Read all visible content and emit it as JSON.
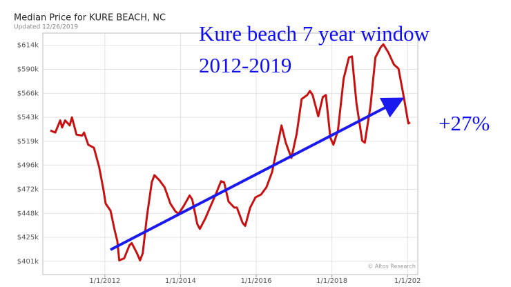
{
  "chart_data": {
    "type": "line",
    "title": "Median Price for KURE BEACH, NC",
    "subtitle": "Updated 12/26/2019",
    "credit": "© Altos Research",
    "annotations": [
      "Kure beach 7 year window",
      "2012-2019",
      "+27%"
    ],
    "x": [
      2010.56,
      2010.69,
      2010.82,
      2010.87,
      2010.95,
      2011.07,
      2011.13,
      2011.25,
      2011.4,
      2011.45,
      2011.56,
      2011.71,
      2011.85,
      2011.96,
      2012.02,
      2012.15,
      2012.25,
      2012.33,
      2012.38,
      2012.51,
      2012.65,
      2012.71,
      2012.85,
      2012.93,
      2013.0,
      2013.11,
      2013.24,
      2013.31,
      2013.44,
      2013.58,
      2013.73,
      2013.87,
      2013.95,
      2014.09,
      2014.24,
      2014.31,
      2014.44,
      2014.51,
      2014.65,
      2014.8,
      2014.93,
      2015.07,
      2015.15,
      2015.27,
      2015.42,
      2015.49,
      2015.64,
      2015.71,
      2015.84,
      2015.98,
      2016.13,
      2016.27,
      2016.42,
      2016.55,
      2016.67,
      2016.78,
      2016.93,
      2017.07,
      2017.2,
      2017.35,
      2017.42,
      2017.49,
      2017.64,
      2017.76,
      2017.84,
      2017.96,
      2018.04,
      2018.16,
      2018.31,
      2018.45,
      2018.53,
      2018.65,
      2018.8,
      2018.87,
      2019.02,
      2019.15,
      2019.29,
      2019.36,
      2019.49,
      2019.64,
      2019.76,
      2019.91,
      2020.02,
      2020.07
    ],
    "series": [
      {
        "color": "#c81010",
        "values": [
          530000,
          528000,
          540000,
          533000,
          540000,
          535000,
          543000,
          526000,
          525000,
          528000,
          516000,
          513000,
          494000,
          472000,
          458000,
          451000,
          433000,
          421000,
          402000,
          404000,
          417000,
          419000,
          409000,
          402000,
          409000,
          445000,
          479000,
          486000,
          481000,
          474000,
          458000,
          450000,
          448000,
          456000,
          466000,
          462000,
          438000,
          433000,
          443000,
          456000,
          467000,
          480000,
          479000,
          460000,
          454000,
          454000,
          439000,
          436000,
          454000,
          464000,
          467000,
          474000,
          489000,
          513000,
          535000,
          518000,
          503000,
          527000,
          561000,
          565000,
          569000,
          565000,
          544000,
          563000,
          565000,
          523000,
          516000,
          530000,
          581000,
          602000,
          603000,
          557000,
          520000,
          518000,
          554000,
          602000,
          612000,
          615000,
          607000,
          595000,
          591000,
          561000,
          537000,
          538000
        ]
      }
    ],
    "xlim": [
      2010.36,
      2020.27
    ],
    "xticks": [
      {
        "value": 2012,
        "label": "1/1/2012"
      },
      {
        "value": 2014,
        "label": "1/1/2014"
      },
      {
        "value": 2016,
        "label": "1/1/2016"
      },
      {
        "value": 2018,
        "label": "1/1/2018"
      },
      {
        "value": 2020,
        "label": "1/1/202"
      }
    ],
    "ylim": [
      388000,
      626000
    ],
    "yticks": [
      {
        "value": 401000,
        "label": "$401k"
      },
      {
        "value": 424700,
        "label": "$425k"
      },
      {
        "value": 448300,
        "label": "$448k"
      },
      {
        "value": 472000,
        "label": "$472k"
      },
      {
        "value": 495700,
        "label": "$496k"
      },
      {
        "value": 519300,
        "label": "$519k"
      },
      {
        "value": 543000,
        "label": "$543k"
      },
      {
        "value": 566400,
        "label": "$566k"
      },
      {
        "value": 590300,
        "label": "$590k"
      },
      {
        "value": 614000,
        "label": "$614k"
      }
    ],
    "grid": true
  }
}
